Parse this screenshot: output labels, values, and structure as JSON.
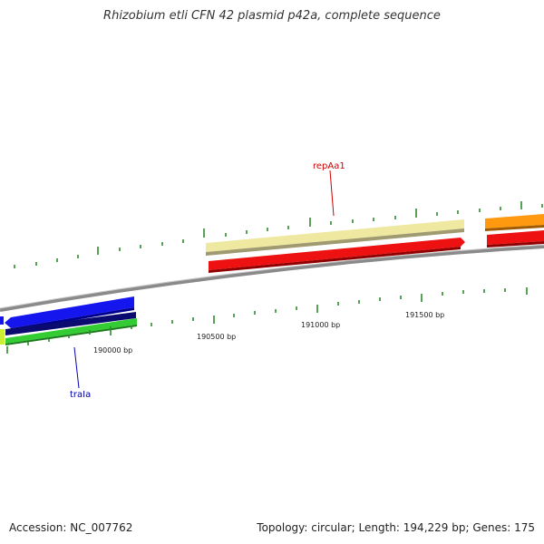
{
  "title": "Rhizobium etli CFN 42 plasmid p42a, complete sequence",
  "footer": {
    "accession": "Accession: NC_007762",
    "summary": "Topology: circular; Length: 194,229 bp; Genes: 175"
  },
  "colors": {
    "backbone": "#888888",
    "ticks": "#2e8b2e",
    "repAa1_label": "#cc0000",
    "traIa_label": "#0000aa",
    "red_feature": "#ee1111",
    "khaki_feature": "#eee8a0",
    "orange_feature": "#ff9910",
    "blue_feature": "#1515ee",
    "navy_feature": "#0a0a70",
    "green_feature": "#33cc33",
    "yellow_feature": "#ccee33"
  },
  "position_labels": [
    {
      "id": "bp190000",
      "text": "190000 bp"
    },
    {
      "id": "bp190500",
      "text": "190500 bp"
    },
    {
      "id": "bp191000",
      "text": "191000 bp"
    },
    {
      "id": "bp191500",
      "text": "191500 bp"
    }
  ],
  "genes": [
    {
      "id": "repAa1",
      "label": "repAa1"
    },
    {
      "id": "traIa",
      "label": "traIa"
    }
  ]
}
